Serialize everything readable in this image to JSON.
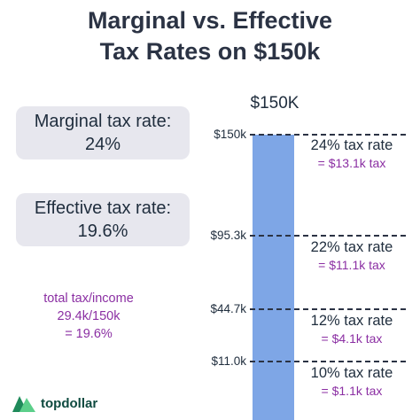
{
  "title": {
    "line1": "Marginal vs. Effective",
    "line2": "Tax Rates on $150k"
  },
  "marginal": {
    "label": "Marginal tax rate:",
    "value": "24%"
  },
  "effective": {
    "label": "Effective tax rate:",
    "value": "19.6%"
  },
  "calc": {
    "line1": "total tax/income",
    "line2": "29.4k/150k",
    "line3": "= 19.6%"
  },
  "column_header": "$150K",
  "brackets": [
    {
      "threshold": "$150k",
      "rate": "24% tax rate",
      "tax": "= $13.1k tax"
    },
    {
      "threshold": "$95.3k",
      "rate": "22% tax rate",
      "tax": "= $11.1k tax"
    },
    {
      "threshold": "$44.7k",
      "rate": "12% tax rate",
      "tax": "= $4.1k tax"
    },
    {
      "threshold": "$11.0k",
      "rate": "10% tax rate",
      "tax": "= $1.1k tax"
    }
  ],
  "logo": {
    "text": "topdollar",
    "icon": "topdollar-logo-icon"
  },
  "colors": {
    "bar": "#7ea6e6",
    "accent_purple": "#8b2fa3",
    "pill_bg": "#e7e7ee",
    "logo_green": "#1f8a5a"
  }
}
